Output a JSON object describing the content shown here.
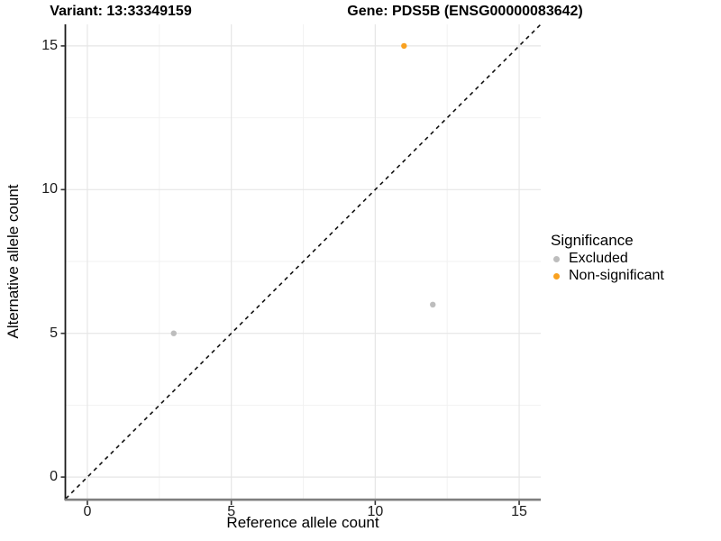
{
  "title": {
    "variant": "Variant: 13:33349159",
    "gene": "Gene: PDS5B (ENSG00000083642)"
  },
  "legend": {
    "title": "Significance",
    "items": [
      {
        "label": "Excluded",
        "color": "#BDBDBD"
      },
      {
        "label": "Non-significant",
        "color": "#F9A11F"
      }
    ]
  },
  "colors": {
    "background": "#FFFFFF",
    "grid_major": "#E6E6E6",
    "grid_minor": "#F2F2F2",
    "axis_line_left": "#1A1A1A",
    "axis_line_bottom": "#7F7F7F",
    "tick_mark": "#333333",
    "reference_line": "#111111"
  },
  "chart_data": {
    "type": "scatter",
    "title": "Variant: 13:33349159    Gene: PDS5B (ENSG00000083642)",
    "xlabel": "Reference allele count",
    "ylabel": "Alternative allele count",
    "xlim": [
      -0.75,
      15.75
    ],
    "ylim": [
      -0.75,
      15.75
    ],
    "x_ticks": [
      0,
      5,
      10,
      15
    ],
    "y_ticks": [
      0,
      5,
      10,
      15
    ],
    "x_minor_ticks": [
      2.5,
      7.5,
      12.5
    ],
    "y_minor_ticks": [
      2.5,
      7.5,
      12.5
    ],
    "grid": "major+minor",
    "legend_title": "Significance",
    "legend_position": "right",
    "series": [
      {
        "name": "Excluded",
        "color": "#BDBDBD",
        "points": [
          [
            3,
            5
          ],
          [
            12,
            6
          ]
        ]
      },
      {
        "name": "Non-significant",
        "color": "#F9A11F",
        "points": [
          [
            11,
            15
          ]
        ]
      }
    ],
    "reference_line": {
      "equation": "y = x",
      "style": "dashed",
      "color": "#111111"
    }
  }
}
